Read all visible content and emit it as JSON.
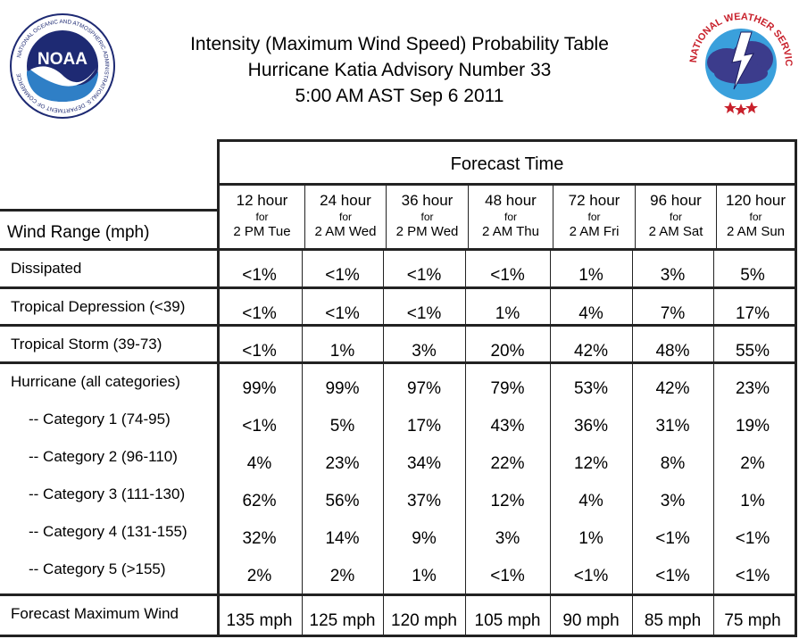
{
  "header": {
    "line1": "Intensity (Maximum Wind Speed) Probability Table",
    "line2": "Hurricane Katia Advisory Number 33",
    "line3": "5:00 AM AST Sep 6 2011",
    "noaa_logo": {
      "label": "NOAA",
      "ring_text": "NATIONAL OCEANIC AND ATMOSPHERIC ADMINISTRATION",
      "bottom_text": "U.S. DEPARTMENT OF COMMERCE",
      "colors": {
        "navy": "#1e2a73",
        "sky": "#2f7fc6"
      }
    },
    "nws_logo": {
      "ring_text": "NATIONAL WEATHER SERVICE",
      "colors": {
        "red": "#c8202b",
        "cloud": "#3c3c8c",
        "sky": "#3aa0dc"
      }
    }
  },
  "table": {
    "forecast_time_label": "Forecast Time",
    "wind_range_label": "Wind Range (mph)",
    "for_label": "for",
    "columns": [
      {
        "hours": "12 hour",
        "when": "2 PM Tue"
      },
      {
        "hours": "24 hour",
        "when": "2 AM Wed"
      },
      {
        "hours": "36 hour",
        "when": "2 PM Wed"
      },
      {
        "hours": "48 hour",
        "when": "2 AM Thu"
      },
      {
        "hours": "72 hour",
        "when": "2 AM Fri"
      },
      {
        "hours": "96 hour",
        "when": "2 AM Sat"
      },
      {
        "hours": "120 hour",
        "when": "2 AM Sun"
      }
    ],
    "rows": [
      {
        "label": "Dissipated",
        "values": [
          "<1%",
          "<1%",
          "<1%",
          "<1%",
          "1%",
          "3%",
          "5%"
        ]
      },
      {
        "label": "Tropical Depression (<39)",
        "values": [
          "<1%",
          "<1%",
          "<1%",
          "1%",
          "4%",
          "7%",
          "17%"
        ]
      },
      {
        "label": "Tropical Storm (39-73)",
        "values": [
          "<1%",
          "1%",
          "3%",
          "20%",
          "42%",
          "48%",
          "55%"
        ]
      },
      {
        "label": "Hurricane (all categories)",
        "values": [
          "99%",
          "99%",
          "97%",
          "79%",
          "53%",
          "42%",
          "23%"
        ]
      },
      {
        "label": "-- Category 1 (74-95)",
        "values": [
          "<1%",
          "5%",
          "17%",
          "43%",
          "36%",
          "31%",
          "19%"
        ]
      },
      {
        "label": "-- Category 2 (96-110)",
        "values": [
          "4%",
          "23%",
          "34%",
          "22%",
          "12%",
          "8%",
          "2%"
        ]
      },
      {
        "label": "-- Category 3 (111-130)",
        "values": [
          "62%",
          "56%",
          "37%",
          "12%",
          "4%",
          "3%",
          "1%"
        ]
      },
      {
        "label": "-- Category 4 (131-155)",
        "values": [
          "32%",
          "14%",
          "9%",
          "3%",
          "1%",
          "<1%",
          "<1%"
        ]
      },
      {
        "label": "-- Category 5 (>155)",
        "values": [
          "2%",
          "2%",
          "1%",
          "<1%",
          "<1%",
          "<1%",
          "<1%"
        ]
      },
      {
        "label": "Forecast Maximum Wind",
        "values": [
          "135 mph",
          "125 mph",
          "120 mph",
          "105 mph",
          "90 mph",
          "85 mph",
          "75 mph"
        ]
      }
    ]
  }
}
